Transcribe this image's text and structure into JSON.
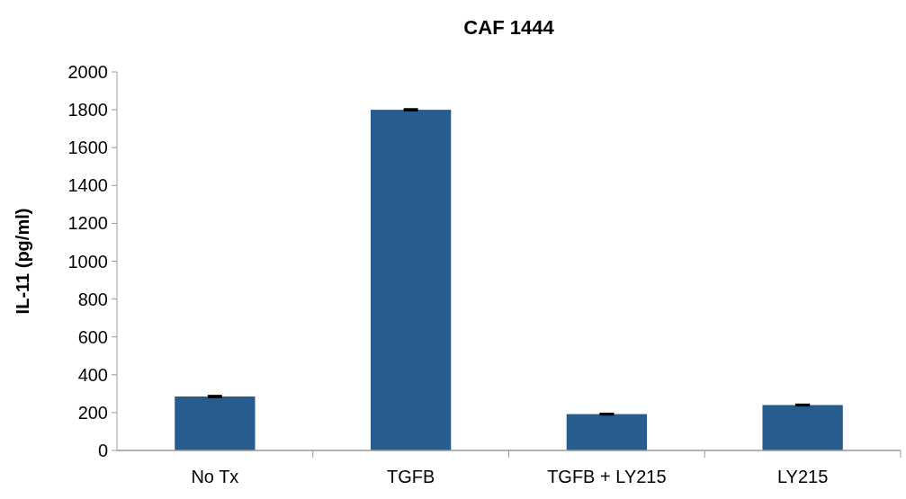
{
  "chart_data": {
    "type": "bar",
    "title": "CAF 1444",
    "ylabel": "IL-11 (pg/ml)",
    "categories": [
      "No Tx",
      "TGFB",
      "TGFB + LY215",
      "LY215"
    ],
    "values": [
      285,
      1800,
      192,
      240
    ],
    "errors": [
      4,
      4,
      3,
      3
    ],
    "color": "#285c8e",
    "ylim": [
      0,
      2000
    ],
    "yticks": [
      0,
      200,
      400,
      600,
      800,
      1000,
      1200,
      1400,
      1600,
      1800,
      2000
    ],
    "grid": false
  }
}
